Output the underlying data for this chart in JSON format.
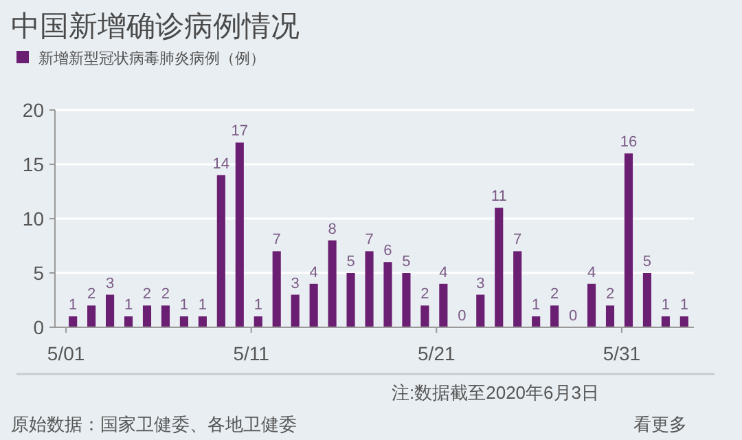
{
  "chart_data": {
    "type": "bar",
    "title": "中国新增确诊病例情况",
    "categories": [
      "5/01",
      null,
      null,
      null,
      null,
      null,
      null,
      null,
      null,
      null,
      "5/11",
      null,
      null,
      null,
      null,
      null,
      null,
      null,
      null,
      null,
      "5/21",
      null,
      null,
      null,
      null,
      null,
      null,
      null,
      null,
      null,
      "5/31",
      null,
      null,
      null
    ],
    "series": [
      {
        "name": "新增新型冠状病毒肺炎病例（例）",
        "color": "#6b1f73",
        "values": [
          1,
          2,
          3,
          1,
          2,
          2,
          1,
          1,
          14,
          17,
          1,
          7,
          3,
          4,
          8,
          5,
          7,
          6,
          5,
          2,
          4,
          0,
          3,
          11,
          7,
          1,
          2,
          0,
          4,
          2,
          16,
          5,
          1,
          1
        ]
      }
    ],
    "ylim": [
      0,
      20
    ],
    "yticks": [
      0,
      5,
      10,
      15,
      20
    ],
    "grid": "y",
    "legend": "top left",
    "data_labels": true,
    "annotations": [
      "注:数据截至2020年6月3日",
      "原始数据：国家卫健委、各地卫健委",
      "看更多"
    ]
  }
}
